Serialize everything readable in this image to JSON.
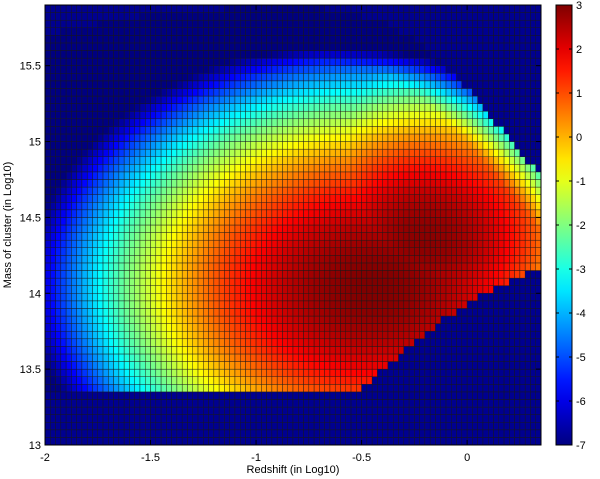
{
  "chart_data": {
    "type": "heatmap",
    "title": "",
    "xlabel": "Redshift (in Log10)",
    "ylabel": "Mass of cluster (in Log10)",
    "xlim": [
      -2,
      0.35
    ],
    "ylim": [
      13,
      15.9
    ],
    "x_ticks": [
      "-2",
      "-1.5",
      "-1",
      "-0.5",
      "0"
    ],
    "x_tick_values": [
      -2,
      -1.5,
      -1,
      -0.5,
      0
    ],
    "y_ticks": [
      "13",
      "13.5",
      "14",
      "14.5",
      "15",
      "15.5"
    ],
    "y_tick_values": [
      13,
      13.5,
      14,
      14.5,
      15,
      15.5
    ],
    "colorbar": {
      "min": -7,
      "max": 3,
      "ticks": [
        "3",
        "2",
        "1",
        "0",
        "-1",
        "-2",
        "-3",
        "-4",
        "-5",
        "-6",
        "-7"
      ],
      "tick_values": [
        3,
        2,
        1,
        0,
        -1,
        -2,
        -3,
        -4,
        -5,
        -6,
        -7
      ],
      "colormap": "jet"
    },
    "grid": {
      "x_cells": 94,
      "y_cells": 58,
      "cell_edge_color": "#1a1a1a",
      "background_color": "#000090",
      "peak": {
        "x": -0.45,
        "y": 14.05,
        "value": 3.0
      },
      "secondary_peak": {
        "x": -0.2,
        "y": 14.35,
        "value": 2.9
      },
      "low_mass_cutoff": 13.37,
      "upper_boundary": [
        [
          -2.0,
          15.7
        ],
        [
          -1.6,
          15.82
        ],
        [
          -1.1,
          15.88
        ],
        [
          -0.7,
          15.88
        ],
        [
          -0.4,
          15.8
        ],
        [
          -0.2,
          15.62
        ],
        [
          0.0,
          15.35
        ],
        [
          0.15,
          15.1
        ],
        [
          0.3,
          14.85
        ],
        [
          0.35,
          14.75
        ]
      ],
      "lower_boundary": [
        [
          -2.0,
          13.37
        ],
        [
          -0.5,
          13.37
        ],
        [
          -0.3,
          13.62
        ],
        [
          -0.1,
          13.84
        ],
        [
          0.05,
          13.97
        ],
        [
          0.2,
          14.08
        ],
        [
          0.35,
          14.17
        ]
      ]
    }
  }
}
